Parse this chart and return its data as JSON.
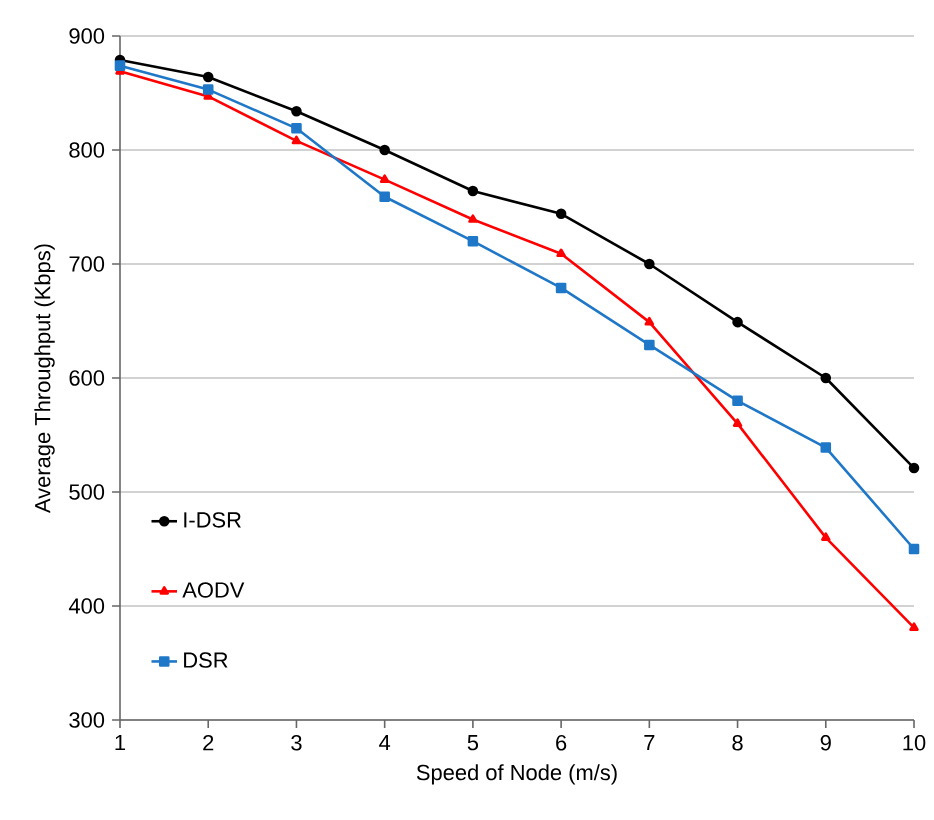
{
  "chart_data": {
    "type": "line",
    "xlabel": "Speed of Node (m/s)",
    "ylabel": "Average Throughput (Kbps)",
    "x": [
      1,
      2,
      3,
      4,
      5,
      6,
      7,
      8,
      9,
      10
    ],
    "xlim": [
      1,
      10
    ],
    "xticks": [
      1,
      2,
      3,
      4,
      5,
      6,
      7,
      8,
      9,
      10
    ],
    "ylim": [
      300,
      900
    ],
    "yticks": [
      300,
      400,
      500,
      600,
      700,
      800,
      900
    ],
    "grid": "y",
    "legend": "bottom left",
    "line_style": "solid",
    "series": [
      {
        "name": "I-DSR",
        "color": "#000000",
        "marker": "circle",
        "values": [
          879,
          864,
          834,
          800,
          764,
          744,
          700,
          649,
          600,
          521
        ]
      },
      {
        "name": "AODV",
        "color": "#ff0000",
        "marker": "triangle",
        "values": [
          869,
          847,
          808,
          774,
          739,
          709,
          649,
          560,
          460,
          381
        ]
      },
      {
        "name": "DSR",
        "color": "#1f77c8",
        "marker": "square",
        "values": [
          874,
          853,
          819,
          759,
          720,
          679,
          629,
          580,
          539,
          450
        ]
      }
    ]
  }
}
